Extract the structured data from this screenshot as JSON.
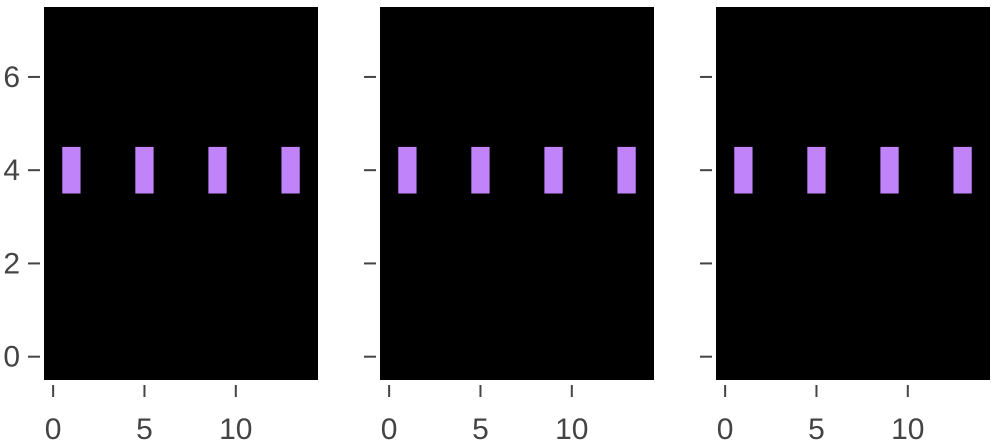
{
  "chart_data": [
    {
      "type": "rect",
      "x": [
        1,
        5,
        9,
        13
      ],
      "values": [
        4,
        4,
        4,
        4
      ],
      "color": "#c183fa",
      "background": "#000000",
      "marker_width": 1,
      "marker_height": 1,
      "xlim": [
        -0.5,
        14.5
      ],
      "xticks": [
        0,
        5,
        10
      ],
      "ylim": [
        -0.5,
        7.5
      ],
      "yticks": [
        0,
        2,
        4,
        6
      ],
      "show_ytick_labels": true
    },
    {
      "type": "rect",
      "x": [
        1,
        5,
        9,
        13
      ],
      "values": [
        4,
        4,
        4,
        4
      ],
      "color": "#c183fa",
      "background": "#000000",
      "marker_width": 1,
      "marker_height": 1,
      "xlim": [
        -0.5,
        14.5
      ],
      "xticks": [
        0,
        5,
        10
      ],
      "ylim": [
        -0.5,
        7.5
      ],
      "yticks": [
        0,
        2,
        4,
        6
      ],
      "show_ytick_labels": false
    },
    {
      "type": "rect",
      "x": [
        1,
        5,
        9,
        13
      ],
      "values": [
        4,
        4,
        4,
        4
      ],
      "color": "#c183fa",
      "background": "#000000",
      "marker_width": 1,
      "marker_height": 1,
      "xlim": [
        -0.5,
        14.5
      ],
      "xticks": [
        0,
        5,
        10
      ],
      "ylim": [
        -0.5,
        7.5
      ],
      "yticks": [
        0,
        2,
        4,
        6
      ],
      "show_ytick_labels": false
    }
  ]
}
